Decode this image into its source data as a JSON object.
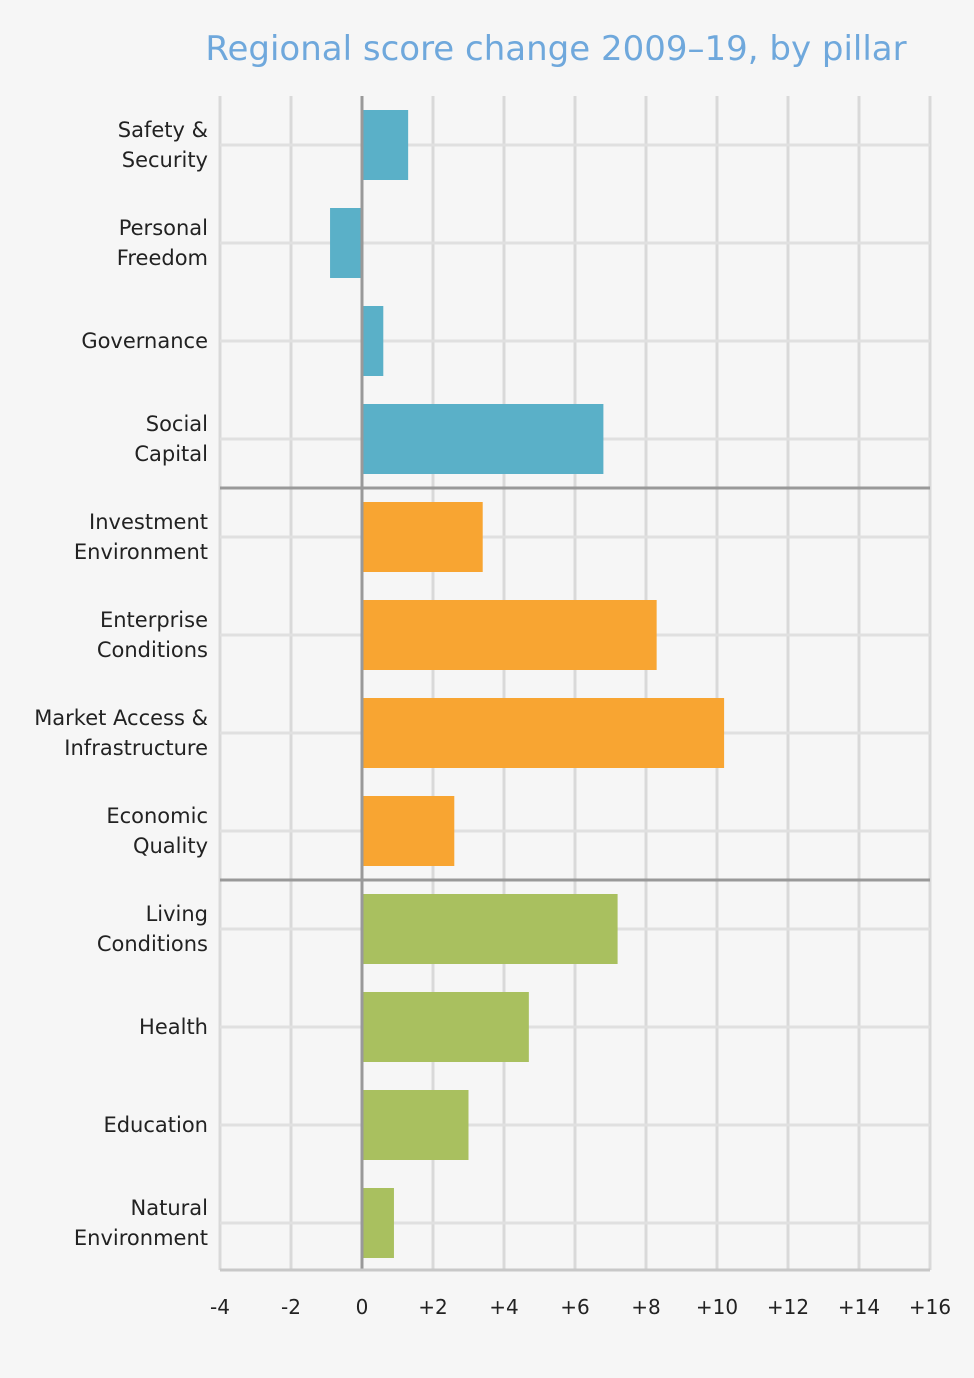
{
  "chart_data": {
    "type": "bar",
    "orientation": "horizontal",
    "title": "Regional score change 2009–19, by pillar",
    "xlabel": "",
    "ylabel": "",
    "xlim": [
      -4,
      16
    ],
    "ticks": [
      "-4",
      "-2",
      "0",
      "+2",
      "+4",
      "+6",
      "+8",
      "+10",
      "+12",
      "+14",
      "+16"
    ],
    "tick_values": [
      -4,
      -2,
      0,
      2,
      4,
      6,
      8,
      10,
      12,
      14,
      16
    ],
    "grid": true,
    "groups": [
      {
        "color": "#5ab0c8",
        "items": [
          {
            "label": [
              "Safety &",
              "Security"
            ],
            "value": 1.3
          },
          {
            "label": [
              "Personal",
              "Freedom"
            ],
            "value": -0.9
          },
          {
            "label": [
              "Governance"
            ],
            "value": 0.6
          },
          {
            "label": [
              "Social",
              "Capital"
            ],
            "value": 6.8
          }
        ]
      },
      {
        "color": "#f8a532",
        "items": [
          {
            "label": [
              "Investment",
              "Environment"
            ],
            "value": 3.4
          },
          {
            "label": [
              "Enterprise",
              "Conditions"
            ],
            "value": 8.3
          },
          {
            "label": [
              "Market Access &",
              "Infrastructure"
            ],
            "value": 10.2
          },
          {
            "label": [
              "Economic",
              "Quality"
            ],
            "value": 2.6
          }
        ]
      },
      {
        "color": "#a9c05f",
        "items": [
          {
            "label": [
              "Living",
              "Conditions"
            ],
            "value": 7.2
          },
          {
            "label": [
              "Health"
            ],
            "value": 4.7
          },
          {
            "label": [
              "Education"
            ],
            "value": 3.0
          },
          {
            "label": [
              "Natural",
              "Environment"
            ],
            "value": 0.9
          }
        ]
      }
    ]
  }
}
